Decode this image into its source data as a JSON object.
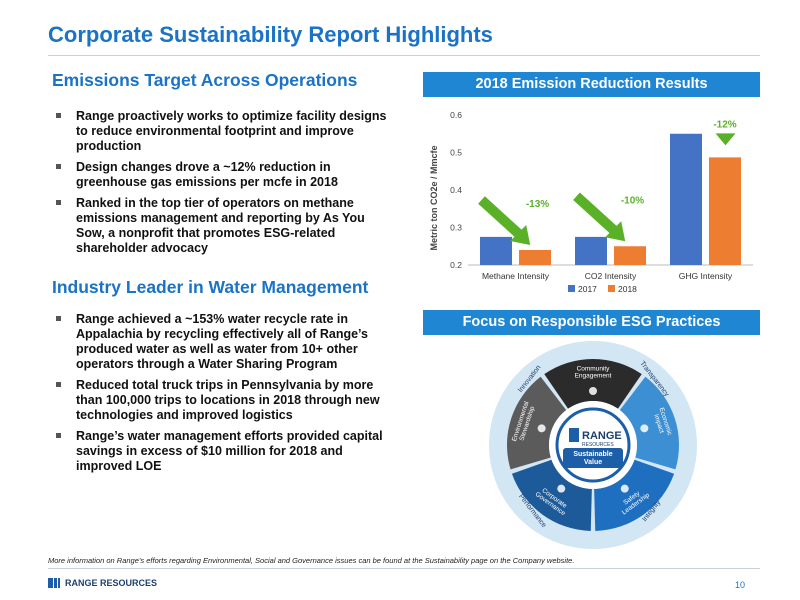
{
  "title": "Corporate Sustainability Report Highlights",
  "emissions": {
    "heading": "Emissions Target Across Operations",
    "bullets": [
      "Range proactively works to optimize facility designs to reduce environmental footprint and improve production",
      "Design changes drove a ~12% reduction in greenhouse gas emissions per mcfe in 2018",
      "Ranked in the top tier of operators on methane emissions management and reporting by As You Sow, a nonprofit that promotes ESG-related shareholder advocacy"
    ]
  },
  "water": {
    "heading": "Industry Leader in Water Management",
    "bullets": [
      "Range achieved a ~153% water recycle rate in Appalachia by recycling effectively all of Range’s produced water as well as water from 10+ other operators through a Water Sharing Program",
      "Reduced total truck trips in Pennsylvania by more than 100,000 trips to locations in 2018 through new technologies and improved logistics",
      "Range’s water management efforts provided capital savings in excess of $10 million for 2018 and improved LOE"
    ]
  },
  "chart_banner": "2018 Emission Reduction Results",
  "esg_banner": "Focus on Responsible ESG Practices",
  "chart_data": {
    "type": "bar",
    "title": "2018 Emission Reduction Results",
    "categories": [
      "Methane Intensity",
      "CO2 Intensity",
      "GHG Intensity"
    ],
    "series": [
      {
        "name": "2017",
        "values": [
          0.275,
          0.275,
          0.55
        ],
        "color": "#4472c4"
      },
      {
        "name": "2018",
        "values": [
          0.24,
          0.25,
          0.487
        ],
        "color": "#ed7d31"
      }
    ],
    "ylabel": "Metric ton CO2e / Mmcfe",
    "xlabel": "",
    "ylim": [
      0.2,
      0.6
    ],
    "yticks": [
      "0.2",
      "0.3",
      "0.4",
      "0.5",
      "0.6"
    ],
    "annotations": [
      "-13%",
      "-10%",
      "-12%"
    ],
    "legend": "bottom",
    "grid": false
  },
  "esg_wheel": {
    "segments": [
      "Community Engagement",
      "Economic Impact",
      "Safety Leadership",
      "Corporate Governance",
      "Environmental Stewardship"
    ],
    "outer_labels": [
      "Innovation",
      "Transparency",
      "Integrity",
      "Performance"
    ],
    "center_brand": "RANGE",
    "center_brand_sub": "RESOURCES",
    "center_value": "Sustainable Value"
  },
  "footnote": "More information on Range’s efforts regarding Environmental, Social and Governance issues can be found at the Sustainability page on the Company website.",
  "logo_text": "RANGE RESOURCES",
  "page_number": "10"
}
